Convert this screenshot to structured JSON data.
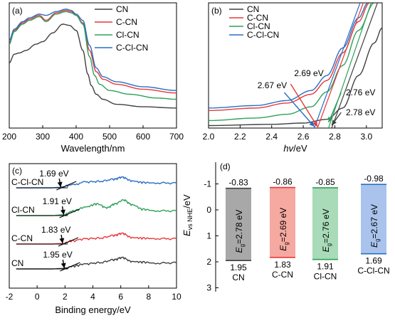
{
  "colors": {
    "CN": "#404040",
    "C-CN": "#e8373a",
    "Cl-CN": "#2ea05a",
    "C-Cl-CN": "#2a6ec4"
  },
  "chart_data": [
    {
      "panel": "(a)",
      "type": "line",
      "xlabel": "Wavelength/nm",
      "xlim": [
        200,
        700
      ],
      "xticks": [
        200,
        300,
        400,
        500,
        600,
        700
      ],
      "legend": [
        "CN",
        "C-CN",
        "Cl-CN",
        "C-Cl-CN"
      ],
      "legend_position": "top-right",
      "series": [
        {
          "name": "CN",
          "color": "#404040",
          "x": [
            200,
            215,
            230,
            250,
            280,
            300,
            330,
            360,
            380,
            400,
            420,
            435,
            445,
            460,
            480,
            520,
            600,
            700
          ],
          "y": [
            0.52,
            0.59,
            0.6,
            0.62,
            0.67,
            0.69,
            0.76,
            0.83,
            0.82,
            0.78,
            0.62,
            0.43,
            0.34,
            0.27,
            0.23,
            0.19,
            0.17,
            0.16
          ]
        },
        {
          "name": "C-CN",
          "color": "#e8373a",
          "x": [
            200,
            215,
            240,
            260,
            290,
            310,
            340,
            370,
            385,
            400,
            420,
            440,
            460,
            480,
            520,
            600,
            700
          ],
          "y": [
            0.68,
            0.78,
            0.84,
            0.87,
            0.9,
            0.86,
            0.92,
            0.94,
            0.93,
            0.9,
            0.84,
            0.62,
            0.45,
            0.39,
            0.35,
            0.31,
            0.28
          ]
        },
        {
          "name": "Cl-CN",
          "color": "#2ea05a",
          "x": [
            200,
            215,
            240,
            260,
            290,
            310,
            340,
            370,
            385,
            400,
            420,
            440,
            455,
            470,
            500,
            560,
            640,
            700
          ],
          "y": [
            0.67,
            0.77,
            0.83,
            0.86,
            0.89,
            0.85,
            0.91,
            0.93,
            0.92,
            0.9,
            0.83,
            0.57,
            0.42,
            0.35,
            0.3,
            0.27,
            0.24,
            0.23
          ]
        },
        {
          "name": "C-Cl-CN",
          "color": "#2a6ec4",
          "x": [
            200,
            215,
            240,
            260,
            290,
            310,
            340,
            370,
            385,
            400,
            420,
            440,
            460,
            480,
            520,
            600,
            700
          ],
          "y": [
            0.7,
            0.79,
            0.85,
            0.88,
            0.91,
            0.9,
            0.93,
            0.95,
            0.94,
            0.91,
            0.86,
            0.66,
            0.48,
            0.41,
            0.37,
            0.33,
            0.3
          ]
        }
      ]
    },
    {
      "panel": "(b)",
      "type": "line",
      "xlabel": "hv/eV",
      "xlim": [
        2.0,
        3.1
      ],
      "xticks": [
        "2.0",
        "2.2",
        "2.4",
        "2.6",
        "2.8",
        "3.0"
      ],
      "legend": [
        "CN",
        "C-CN",
        "Cl-CN",
        "C-Cl-CN"
      ],
      "legend_position": "top-left",
      "annotations": [
        {
          "text": "2.69 eV",
          "value": 2.69,
          "color": "#e8373a"
        },
        {
          "text": "2.67 eV",
          "value": 2.67,
          "color": "#2a6ec4"
        },
        {
          "text": "2.76 eV",
          "value": 2.76,
          "color": "#2ea05a"
        },
        {
          "text": "2.78 eV",
          "value": 2.78,
          "color": "#404040"
        }
      ],
      "series": [
        {
          "name": "CN",
          "color": "#404040",
          "x": [
            2.0,
            2.4,
            2.6,
            2.75,
            2.85,
            2.95,
            3.05,
            3.1
          ],
          "y": [
            0.02,
            0.03,
            0.04,
            0.07,
            0.16,
            0.42,
            0.68,
            0.8
          ]
        },
        {
          "name": "C-CN",
          "color": "#e8373a",
          "x": [
            2.0,
            2.3,
            2.5,
            2.65,
            2.75,
            2.85,
            2.95,
            3.02
          ],
          "y": [
            0.14,
            0.16,
            0.2,
            0.27,
            0.38,
            0.6,
            0.85,
            1.0
          ]
        },
        {
          "name": "Cl-CN",
          "color": "#2ea05a",
          "x": [
            2.0,
            2.3,
            2.5,
            2.65,
            2.75,
            2.85,
            2.95,
            3.05
          ],
          "y": [
            0.06,
            0.08,
            0.11,
            0.17,
            0.29,
            0.5,
            0.78,
            1.0
          ]
        },
        {
          "name": "C-Cl-CN",
          "color": "#2a6ec4",
          "x": [
            2.0,
            2.3,
            2.5,
            2.65,
            2.75,
            2.85,
            2.95,
            3.01
          ],
          "y": [
            0.16,
            0.18,
            0.22,
            0.3,
            0.42,
            0.64,
            0.88,
            1.0
          ]
        }
      ]
    },
    {
      "panel": "(c)",
      "type": "line",
      "xlabel": "Binding energy/eV",
      "xlim": [
        -2,
        10
      ],
      "xticks": [
        -2,
        0,
        2,
        4,
        6,
        8,
        10
      ],
      "series": [
        {
          "name": "CN",
          "label": "CN",
          "value_label": "1.95 eV",
          "vb": 1.95,
          "color": "#404040",
          "x": [
            -1.5,
            0,
            1,
            1.95,
            2.6,
            3.5,
            4.5,
            5.5,
            6.1,
            6.8,
            7.6,
            8.5,
            10
          ],
          "y": [
            0,
            0,
            0,
            0.05,
            0.25,
            0.45,
            0.55,
            0.8,
            1.0,
            0.65,
            0.6,
            0.5,
            0.55
          ]
        },
        {
          "name": "C-CN",
          "label": "C-CN",
          "value_label": "1.83 eV",
          "vb": 1.83,
          "color": "#e8373a",
          "x": [
            -1.5,
            0,
            1,
            1.83,
            2.5,
            3.5,
            4.5,
            5.5,
            6.1,
            6.8,
            7.6,
            8.5,
            10
          ],
          "y": [
            0,
            0,
            0,
            0.05,
            0.3,
            0.5,
            0.55,
            0.8,
            1.0,
            0.6,
            0.55,
            0.5,
            0.5
          ]
        },
        {
          "name": "Cl-CN",
          "label": "Cl-CN",
          "value_label": "1.91 eV",
          "vb": 1.91,
          "color": "#2ea05a",
          "x": [
            -1.5,
            0,
            1,
            1.91,
            2.6,
            3.5,
            4.3,
            5.0,
            5.6,
            6.2,
            6.8,
            7.6,
            8.5,
            10
          ],
          "y": [
            0,
            0,
            0,
            0.05,
            0.3,
            0.55,
            0.75,
            0.5,
            0.75,
            1.0,
            0.7,
            0.4,
            0.3,
            0.3
          ]
        },
        {
          "name": "C-Cl-CN",
          "label": "C-Cl-CN",
          "value_label": "1.69 eV",
          "vb": 1.69,
          "color": "#2a6ec4",
          "x": [
            -1.5,
            0,
            1,
            1.69,
            2.4,
            3.5,
            4.5,
            5.5,
            6.1,
            6.8,
            7.6,
            8.5,
            10
          ],
          "y": [
            0,
            0,
            0,
            0.05,
            0.25,
            0.55,
            0.6,
            0.8,
            1.0,
            0.65,
            0.5,
            0.45,
            0.45
          ]
        }
      ]
    },
    {
      "panel": "(d)",
      "type": "bar",
      "ylabel_main": "E",
      "ylabel_sub": "vs NHE",
      "ylabel_unit": "/eV",
      "ylim": [
        -1.5,
        3
      ],
      "yticks": [
        -1,
        0,
        1,
        2,
        3
      ],
      "y_inverted": true,
      "bars": [
        {
          "name": "CN",
          "cb": -0.83,
          "vb": 1.95,
          "cb_label": "-0.83",
          "vb_label": "1.95",
          "gap_text": "=2.78 eV",
          "fill": "#a9a8a8",
          "edge": "#404040"
        },
        {
          "name": "C-CN",
          "cb": -0.86,
          "vb": 1.83,
          "cb_label": "-0.86",
          "vb_label": "1.83",
          "gap_text": "=2.69 eV",
          "fill": "#f5a9a0",
          "edge": "#e8373a"
        },
        {
          "name": "Cl-CN",
          "cb": -0.85,
          "vb": 1.91,
          "cb_label": "-0.85",
          "vb_label": "1.91",
          "gap_text": "=2.76 eV",
          "fill": "#a9dbb8",
          "edge": "#2ea05a"
        },
        {
          "name": "C-Cl-CN",
          "cb": -0.98,
          "vb": 1.69,
          "cb_label": "-0.98",
          "vb_label": "1.69",
          "gap_text": "=2.67 eV",
          "fill": "#a9c3ec",
          "edge": "#2a6ec4"
        }
      ]
    }
  ]
}
